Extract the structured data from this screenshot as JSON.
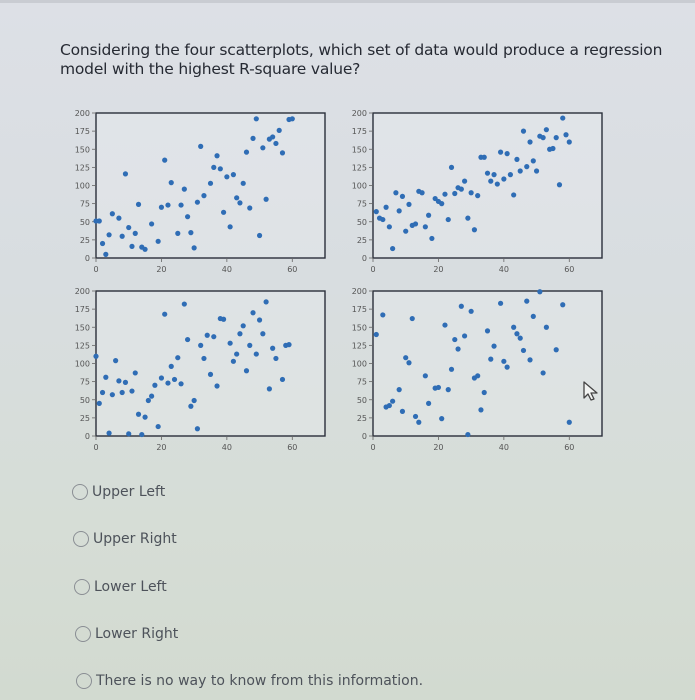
{
  "question": {
    "text": "Considering the four scatterplots, which set of data would produce a regression model with the highest R-square value?"
  },
  "options": [
    {
      "label": "Upper Left",
      "selected": false
    },
    {
      "label": "Upper Right",
      "selected": false
    },
    {
      "label": "Lower Left",
      "selected": false
    },
    {
      "label": "Lower Right",
      "selected": false
    },
    {
      "label": "There is no way to know from this information.",
      "selected": false
    }
  ],
  "colors": {
    "point": "#2f6db5",
    "frame": "#2a2f3a",
    "tick_text": "#555555"
  },
  "chart_data": [
    {
      "type": "scatter",
      "name": "Upper Left",
      "title": "",
      "xlabel": "",
      "ylabel": "",
      "xlim": [
        0,
        70
      ],
      "ylim": [
        0,
        200
      ],
      "xticks": [
        0,
        20,
        40,
        60
      ],
      "yticks": [
        0,
        25,
        50,
        75,
        100,
        125,
        150,
        175,
        200
      ],
      "grid": false,
      "points": [
        [
          0,
          51
        ],
        [
          1,
          51
        ],
        [
          2,
          20
        ],
        [
          3,
          5
        ],
        [
          4,
          32
        ],
        [
          5,
          61
        ],
        [
          7,
          55
        ],
        [
          8,
          30
        ],
        [
          9,
          116
        ],
        [
          10,
          42
        ],
        [
          11,
          16
        ],
        [
          12,
          34
        ],
        [
          13,
          74
        ],
        [
          14,
          15
        ],
        [
          15,
          12
        ],
        [
          17,
          47
        ],
        [
          19,
          23
        ],
        [
          20,
          70
        ],
        [
          21,
          135
        ],
        [
          22,
          73
        ],
        [
          23,
          104
        ],
        [
          25,
          34
        ],
        [
          26,
          73
        ],
        [
          27,
          95
        ],
        [
          28,
          57
        ],
        [
          29,
          35
        ],
        [
          30,
          14
        ],
        [
          31,
          77
        ],
        [
          32,
          154
        ],
        [
          33,
          86
        ],
        [
          35,
          103
        ],
        [
          36,
          125
        ],
        [
          37,
          141
        ],
        [
          38,
          123
        ],
        [
          39,
          63
        ],
        [
          40,
          112
        ],
        [
          41,
          43
        ],
        [
          42,
          115
        ],
        [
          43,
          83
        ],
        [
          44,
          76
        ],
        [
          45,
          103
        ],
        [
          46,
          146
        ],
        [
          47,
          69
        ],
        [
          48,
          165
        ],
        [
          49,
          192
        ],
        [
          50,
          31
        ],
        [
          51,
          152
        ],
        [
          52,
          81
        ],
        [
          53,
          164
        ],
        [
          54,
          167
        ],
        [
          55,
          158
        ],
        [
          56,
          176
        ],
        [
          57,
          145
        ],
        [
          59,
          191
        ],
        [
          60,
          192
        ]
      ]
    },
    {
      "type": "scatter",
      "name": "Upper Right",
      "title": "",
      "xlabel": "",
      "ylabel": "",
      "xlim": [
        0,
        70
      ],
      "ylim": [
        0,
        200
      ],
      "xticks": [
        0,
        20,
        40,
        60
      ],
      "yticks": [
        0,
        25,
        50,
        75,
        100,
        125,
        150,
        175,
        200
      ],
      "grid": false,
      "points": [
        [
          1,
          64
        ],
        [
          2,
          55
        ],
        [
          3,
          53
        ],
        [
          4,
          70
        ],
        [
          5,
          43
        ],
        [
          6,
          13
        ],
        [
          7,
          90
        ],
        [
          8,
          65
        ],
        [
          9,
          85
        ],
        [
          10,
          37
        ],
        [
          11,
          74
        ],
        [
          12,
          45
        ],
        [
          13,
          47
        ],
        [
          14,
          92
        ],
        [
          15,
          90
        ],
        [
          16,
          43
        ],
        [
          17,
          59
        ],
        [
          18,
          27
        ],
        [
          19,
          82
        ],
        [
          20,
          78
        ],
        [
          21,
          75
        ],
        [
          22,
          88
        ],
        [
          23,
          53
        ],
        [
          24,
          125
        ],
        [
          25,
          89
        ],
        [
          26,
          97
        ],
        [
          27,
          95
        ],
        [
          28,
          106
        ],
        [
          29,
          55
        ],
        [
          30,
          90
        ],
        [
          31,
          39
        ],
        [
          32,
          86
        ],
        [
          33,
          139
        ],
        [
          34,
          139
        ],
        [
          35,
          117
        ],
        [
          36,
          106
        ],
        [
          37,
          115
        ],
        [
          38,
          102
        ],
        [
          39,
          146
        ],
        [
          40,
          109
        ],
        [
          41,
          144
        ],
        [
          42,
          115
        ],
        [
          43,
          87
        ],
        [
          44,
          136
        ],
        [
          45,
          120
        ],
        [
          46,
          175
        ],
        [
          47,
          126
        ],
        [
          48,
          160
        ],
        [
          49,
          134
        ],
        [
          50,
          120
        ],
        [
          51,
          168
        ],
        [
          52,
          166
        ],
        [
          53,
          177
        ],
        [
          54,
          150
        ],
        [
          55,
          151
        ],
        [
          56,
          166
        ],
        [
          57,
          101
        ],
        [
          58,
          193
        ],
        [
          59,
          170
        ],
        [
          60,
          160
        ]
      ]
    },
    {
      "type": "scatter",
      "name": "Lower Left",
      "title": "",
      "xlabel": "",
      "ylabel": "",
      "xlim": [
        0,
        70
      ],
      "ylim": [
        0,
        200
      ],
      "xticks": [
        0,
        20,
        40,
        60
      ],
      "yticks": [
        0,
        25,
        50,
        75,
        100,
        125,
        150,
        175,
        200
      ],
      "grid": false,
      "points": [
        [
          0,
          110
        ],
        [
          1,
          45
        ],
        [
          2,
          60
        ],
        [
          3,
          81
        ],
        [
          4,
          4
        ],
        [
          5,
          57
        ],
        [
          6,
          104
        ],
        [
          7,
          76
        ],
        [
          8,
          60
        ],
        [
          9,
          74
        ],
        [
          10,
          3
        ],
        [
          11,
          62
        ],
        [
          12,
          87
        ],
        [
          13,
          30
        ],
        [
          14,
          2
        ],
        [
          15,
          26
        ],
        [
          16,
          49
        ],
        [
          17,
          55
        ],
        [
          18,
          70
        ],
        [
          19,
          13
        ],
        [
          20,
          80
        ],
        [
          21,
          168
        ],
        [
          22,
          73
        ],
        [
          23,
          96
        ],
        [
          24,
          78
        ],
        [
          25,
          108
        ],
        [
          26,
          72
        ],
        [
          27,
          182
        ],
        [
          28,
          133
        ],
        [
          29,
          41
        ],
        [
          30,
          49
        ],
        [
          31,
          10
        ],
        [
          32,
          125
        ],
        [
          33,
          107
        ],
        [
          34,
          139
        ],
        [
          35,
          85
        ],
        [
          36,
          137
        ],
        [
          37,
          69
        ],
        [
          38,
          162
        ],
        [
          39,
          161
        ],
        [
          41,
          128
        ],
        [
          42,
          103
        ],
        [
          43,
          113
        ],
        [
          44,
          141
        ],
        [
          45,
          152
        ],
        [
          46,
          90
        ],
        [
          47,
          125
        ],
        [
          48,
          170
        ],
        [
          49,
          113
        ],
        [
          50,
          160
        ],
        [
          51,
          141
        ],
        [
          52,
          185
        ],
        [
          53,
          65
        ],
        [
          54,
          121
        ],
        [
          55,
          107
        ],
        [
          57,
          78
        ],
        [
          58,
          125
        ],
        [
          59,
          126
        ]
      ]
    },
    {
      "type": "scatter",
      "name": "Lower Right",
      "title": "",
      "xlabel": "",
      "ylabel": "",
      "xlim": [
        0,
        70
      ],
      "ylim": [
        0,
        200
      ],
      "xticks": [
        0,
        20,
        40,
        60
      ],
      "yticks": [
        0,
        25,
        50,
        75,
        100,
        125,
        150,
        175,
        200
      ],
      "grid": false,
      "points": [
        [
          1,
          140
        ],
        [
          3,
          167
        ],
        [
          4,
          40
        ],
        [
          5,
          42
        ],
        [
          6,
          48
        ],
        [
          8,
          64
        ],
        [
          9,
          34
        ],
        [
          10,
          108
        ],
        [
          11,
          101
        ],
        [
          12,
          162
        ],
        [
          13,
          27
        ],
        [
          14,
          19
        ],
        [
          16,
          83
        ],
        [
          17,
          45
        ],
        [
          19,
          66
        ],
        [
          20,
          67
        ],
        [
          21,
          24
        ],
        [
          22,
          153
        ],
        [
          23,
          64
        ],
        [
          24,
          92
        ],
        [
          25,
          133
        ],
        [
          26,
          120
        ],
        [
          27,
          179
        ],
        [
          28,
          138
        ],
        [
          29,
          2
        ],
        [
          30,
          172
        ],
        [
          31,
          80
        ],
        [
          32,
          83
        ],
        [
          33,
          36
        ],
        [
          34,
          60
        ],
        [
          35,
          145
        ],
        [
          36,
          106
        ],
        [
          37,
          124
        ],
        [
          39,
          183
        ],
        [
          40,
          103
        ],
        [
          41,
          95
        ],
        [
          43,
          150
        ],
        [
          44,
          141
        ],
        [
          45,
          135
        ],
        [
          46,
          118
        ],
        [
          47,
          186
        ],
        [
          48,
          105
        ],
        [
          49,
          165
        ],
        [
          51,
          199
        ],
        [
          52,
          87
        ],
        [
          53,
          150
        ],
        [
          56,
          119
        ],
        [
          58,
          181
        ],
        [
          60,
          19
        ]
      ]
    }
  ]
}
